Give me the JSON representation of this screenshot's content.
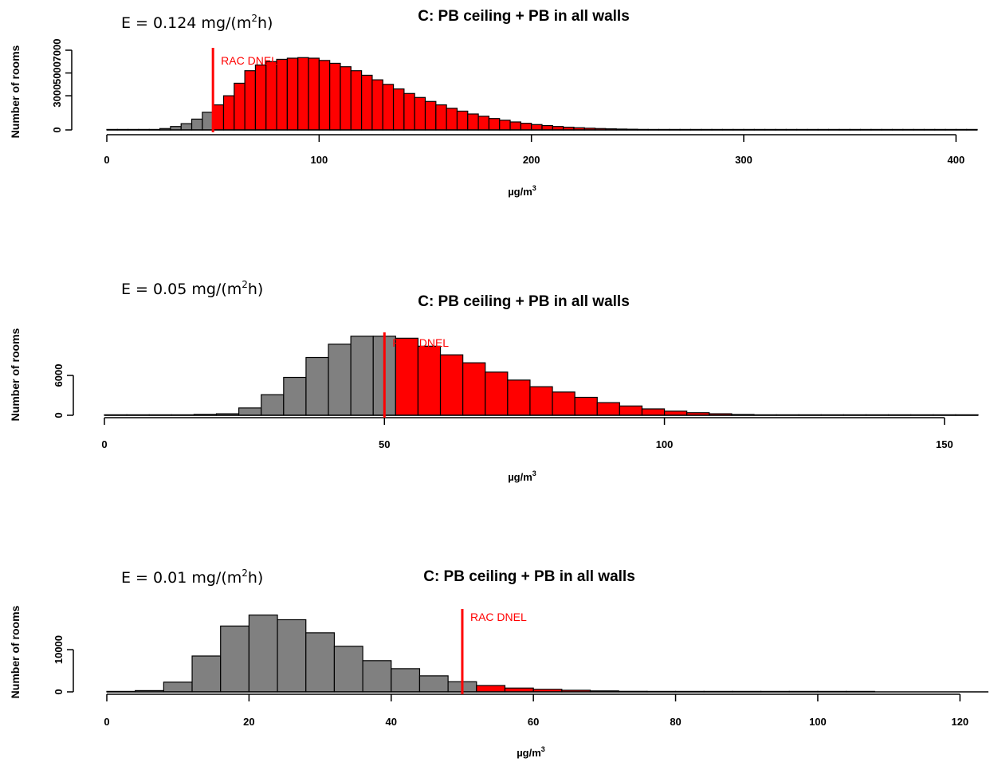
{
  "chart_data": [
    {
      "type": "bar",
      "title": "C: PB ceiling + PB in all walls",
      "emission_label": {
        "prefix": "E = 0.124 mg/(m",
        "sup": "2",
        "suffix": "h)"
      },
      "xlabel": {
        "base": "µg/m",
        "sup": "3"
      },
      "ylabel": "Number of rooms",
      "xlim": [
        0,
        410
      ],
      "ylim": [
        0,
        7000
      ],
      "xticks": [
        0,
        100,
        200,
        300,
        400
      ],
      "yticks": [
        0,
        3000,
        5000,
        7000
      ],
      "bin_width": 5,
      "bin_start": 0,
      "values": [
        0,
        0,
        0,
        0,
        40,
        120,
        300,
        550,
        950,
        1550,
        2200,
        3000,
        4100,
        5200,
        5700,
        6000,
        6200,
        6300,
        6350,
        6300,
        6100,
        5850,
        5550,
        5200,
        4800,
        4400,
        4000,
        3600,
        3200,
        2850,
        2500,
        2200,
        1900,
        1650,
        1400,
        1200,
        1000,
        850,
        700,
        580,
        470,
        380,
        300,
        240,
        190,
        150,
        120,
        95,
        75,
        60,
        46,
        36,
        28,
        22,
        17,
        13,
        10,
        8,
        6,
        5,
        4,
        3,
        3,
        2,
        2,
        2,
        1,
        1,
        1,
        1,
        1,
        1,
        1,
        1,
        1,
        1,
        1,
        1,
        1,
        1,
        1,
        1
      ],
      "threshold": 50,
      "threshold_label": "RAC DNEL",
      "colors": {
        "below": "#808080",
        "above": "#ff0000",
        "line": "#ff0000"
      }
    },
    {
      "type": "bar",
      "title": "C: PB ceiling + PB in all walls",
      "emission_label": {
        "prefix": "E = 0.05 mg/(m",
        "sup": "2",
        "suffix": "h)"
      },
      "xlabel": {
        "base": "µg/m",
        "sup": "3"
      },
      "ylabel": "Number of rooms",
      "xlim": [
        0,
        156
      ],
      "ylim": [
        0,
        12000
      ],
      "xticks": [
        0,
        50,
        100,
        150
      ],
      "yticks": [
        0,
        6000
      ],
      "bin_width": 4,
      "bin_start": 0,
      "values": [
        0,
        0,
        0,
        20,
        130,
        230,
        1100,
        3100,
        5700,
        8700,
        10700,
        11900,
        11900,
        11600,
        10400,
        9100,
        7900,
        6500,
        5300,
        4300,
        3500,
        2700,
        1900,
        1400,
        960,
        620,
        390,
        230,
        120,
        70,
        40,
        20,
        10,
        5,
        3,
        2,
        2,
        1,
        1
      ],
      "threshold": 50,
      "threshold_label": "RAC DNEL",
      "colors": {
        "below": "#808080",
        "above": "#ff0000",
        "line": "#ff0000"
      }
    },
    {
      "type": "bar",
      "title": "C: PB ceiling + PB in all walls",
      "emission_label": {
        "prefix": "E = 0.01 mg/(m",
        "sup": "2",
        "suffix": "h)"
      },
      "xlabel": {
        "base": "µg/m",
        "sup": "3"
      },
      "ylabel": "Number of rooms",
      "xlim": [
        0,
        124
      ],
      "ylim": [
        0,
        17000
      ],
      "xticks": [
        0,
        20,
        40,
        60,
        80,
        100,
        120
      ],
      "yticks": [
        0,
        10000
      ],
      "bin_width": 4,
      "bin_start": 0,
      "values": [
        0,
        300,
        2300,
        8500,
        15600,
        18200,
        17100,
        14000,
        10800,
        7400,
        5500,
        3800,
        2400,
        1500,
        900,
        600,
        380,
        230,
        130,
        80,
        50,
        30,
        20,
        10,
        5,
        2,
        1
      ],
      "threshold": 50,
      "threshold_label": "RAC DNEL",
      "colors": {
        "below": "#808080",
        "above": "#ff0000",
        "line": "#ff0000"
      }
    }
  ]
}
